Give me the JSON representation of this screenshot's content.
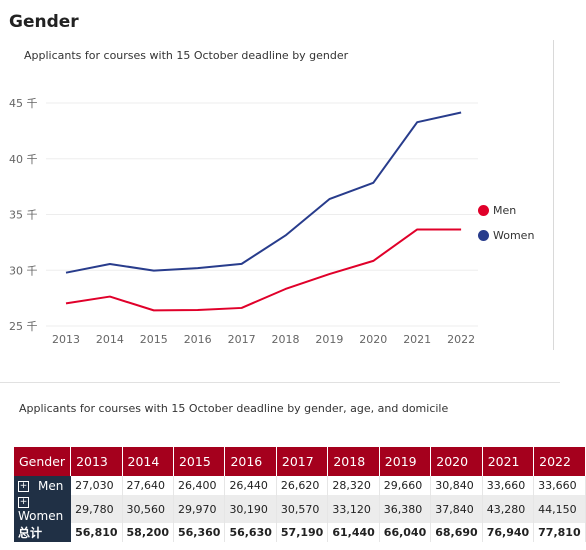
{
  "page_title": "Gender",
  "chart_data": {
    "type": "line",
    "title": "Applicants for courses with 15 October deadline  by gender",
    "categories": [
      "2013",
      "2014",
      "2015",
      "2016",
      "2017",
      "2018",
      "2019",
      "2020",
      "2021",
      "2022"
    ],
    "series": [
      {
        "name": "Men",
        "color": "#e0002a",
        "values": [
          27030,
          27640,
          26400,
          26440,
          26620,
          28320,
          29660,
          30840,
          33660,
          33660
        ]
      },
      {
        "name": "Women",
        "color": "#283c8c",
        "values": [
          29780,
          30560,
          29970,
          30190,
          30570,
          33120,
          36380,
          37840,
          43280,
          44150
        ]
      }
    ],
    "y_ticks": [
      {
        "value": 25000,
        "label": "25 千"
      },
      {
        "value": 30000,
        "label": "30 千"
      },
      {
        "value": 35000,
        "label": "35 千"
      },
      {
        "value": 40000,
        "label": "40 千"
      },
      {
        "value": 45000,
        "label": "45 千"
      }
    ],
    "ylim": [
      25000,
      46000
    ],
    "grid": true,
    "legend_position": "right"
  },
  "table": {
    "title": "Applicants for courses with 15 October deadline  by gender, age, and domicile",
    "header_label": "Gender",
    "years": [
      "2013",
      "2014",
      "2015",
      "2016",
      "2017",
      "2018",
      "2019",
      "2020",
      "2021",
      "2022"
    ],
    "rows": [
      {
        "label": "Men",
        "expander": "+",
        "values": [
          "27,030",
          "27,640",
          "26,400",
          "26,440",
          "26,620",
          "28,320",
          "29,660",
          "30,840",
          "33,660",
          "33,660"
        ]
      },
      {
        "label": "Women",
        "expander": "+",
        "values": [
          "29,780",
          "30,560",
          "29,970",
          "30,190",
          "30,570",
          "33,120",
          "36,380",
          "37,840",
          "43,280",
          "44,150"
        ]
      }
    ],
    "total": {
      "label": "总计",
      "values": [
        "56,810",
        "58,200",
        "56,360",
        "56,630",
        "57,190",
        "61,440",
        "66,040",
        "68,690",
        "76,940",
        "77,810"
      ]
    }
  }
}
